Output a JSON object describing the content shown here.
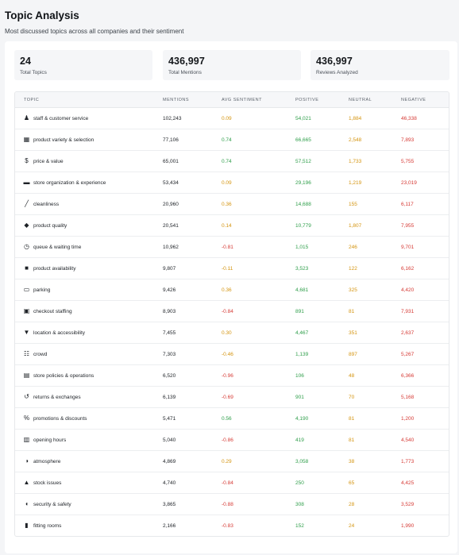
{
  "header": {
    "title": "Topic Analysis",
    "subtitle": "Most discussed topics across all companies and their sentiment"
  },
  "stats": [
    {
      "value": "24",
      "label": "Total Topics"
    },
    {
      "value": "436,997",
      "label": "Total Mentions"
    },
    {
      "value": "436,997",
      "label": "Reviews Analyzed"
    }
  ],
  "table": {
    "headers": {
      "topic": "TOPIC",
      "mentions": "MENTIONS",
      "avg_sentiment": "AVG SENTIMENT",
      "positive": "POSITIVE",
      "neutral": "NEUTRAL",
      "negative": "NEGATIVE"
    },
    "colors": {
      "positive": "#2e9e4a",
      "neutral": "#d4940f",
      "negative": "#d63a35"
    },
    "rows": [
      {
        "icon": "user-icon",
        "topic": "staff & customer service",
        "mentions": "102,243",
        "sentiment": "0.09",
        "tone": "neu",
        "positive": "54,021",
        "neutral": "1,884",
        "negative": "46,338"
      },
      {
        "icon": "boxes-icon",
        "topic": "product variety & selection",
        "mentions": "77,106",
        "sentiment": "0.74",
        "tone": "pos",
        "positive": "66,665",
        "neutral": "2,548",
        "negative": "7,893"
      },
      {
        "icon": "dollar-icon",
        "topic": "price & value",
        "mentions": "65,001",
        "sentiment": "0.74",
        "tone": "pos",
        "positive": "57,512",
        "neutral": "1,733",
        "negative": "5,755"
      },
      {
        "icon": "store-icon",
        "topic": "store organization & experience",
        "mentions": "53,434",
        "sentiment": "0.09",
        "tone": "neu",
        "positive": "29,196",
        "neutral": "1,219",
        "negative": "23,019"
      },
      {
        "icon": "broom-icon",
        "topic": "cleanliness",
        "mentions": "20,960",
        "sentiment": "0.36",
        "tone": "neu",
        "positive": "14,688",
        "neutral": "155",
        "negative": "6,117"
      },
      {
        "icon": "gem-icon",
        "topic": "product quality",
        "mentions": "20,541",
        "sentiment": "0.14",
        "tone": "neu",
        "positive": "10,779",
        "neutral": "1,807",
        "negative": "7,955"
      },
      {
        "icon": "clock-icon",
        "topic": "queue & waiting time",
        "mentions": "10,962",
        "sentiment": "-0.81",
        "tone": "neg",
        "positive": "1,015",
        "neutral": "246",
        "negative": "9,701"
      },
      {
        "icon": "bag-icon",
        "topic": "product availability",
        "mentions": "9,807",
        "sentiment": "-0.11",
        "tone": "neu",
        "positive": "3,523",
        "neutral": "122",
        "negative": "6,162"
      },
      {
        "icon": "car-icon",
        "topic": "parking",
        "mentions": "9,426",
        "sentiment": "0.36",
        "tone": "neu",
        "positive": "4,681",
        "neutral": "325",
        "negative": "4,420"
      },
      {
        "icon": "register-icon",
        "topic": "checkout staffing",
        "mentions": "8,903",
        "sentiment": "-0.84",
        "tone": "neg",
        "positive": "891",
        "neutral": "81",
        "negative": "7,931"
      },
      {
        "icon": "location-pin-icon",
        "topic": "location & accessibility",
        "mentions": "7,455",
        "sentiment": "0.30",
        "tone": "neu",
        "positive": "4,467",
        "neutral": "351",
        "negative": "2,637"
      },
      {
        "icon": "people-icon",
        "topic": "crowd",
        "mentions": "7,303",
        "sentiment": "-0.46",
        "tone": "neu",
        "positive": "1,139",
        "neutral": "897",
        "negative": "5,267"
      },
      {
        "icon": "policy-icon",
        "topic": "store policies & operations",
        "mentions": "6,520",
        "sentiment": "-0.96",
        "tone": "neg",
        "positive": "106",
        "neutral": "48",
        "negative": "6,366"
      },
      {
        "icon": "return-icon",
        "topic": "returns & exchanges",
        "mentions": "6,139",
        "sentiment": "-0.69",
        "tone": "neg",
        "positive": "901",
        "neutral": "70",
        "negative": "5,168"
      },
      {
        "icon": "percent-icon",
        "topic": "promotions & discounts",
        "mentions": "5,471",
        "sentiment": "0.56",
        "tone": "pos",
        "positive": "4,190",
        "neutral": "81",
        "negative": "1,200"
      },
      {
        "icon": "store-front-icon",
        "topic": "opening hours",
        "mentions": "5,040",
        "sentiment": "-0.86",
        "tone": "neg",
        "positive": "419",
        "neutral": "81",
        "negative": "4,540"
      },
      {
        "icon": "palette-icon",
        "topic": "atmosphere",
        "mentions": "4,869",
        "sentiment": "0.29",
        "tone": "neu",
        "positive": "3,058",
        "neutral": "38",
        "negative": "1,773"
      },
      {
        "icon": "warning-icon",
        "topic": "stock issues",
        "mentions": "4,740",
        "sentiment": "-0.84",
        "tone": "neg",
        "positive": "250",
        "neutral": "65",
        "negative": "4,425"
      },
      {
        "icon": "shield-icon",
        "topic": "security & safety",
        "mentions": "3,865",
        "sentiment": "-0.88",
        "tone": "neg",
        "positive": "308",
        "neutral": "28",
        "negative": "3,529"
      },
      {
        "icon": "shirt-icon",
        "topic": "fitting rooms",
        "mentions": "2,166",
        "sentiment": "-0.83",
        "tone": "neg",
        "positive": "152",
        "neutral": "24",
        "negative": "1,990"
      }
    ]
  }
}
